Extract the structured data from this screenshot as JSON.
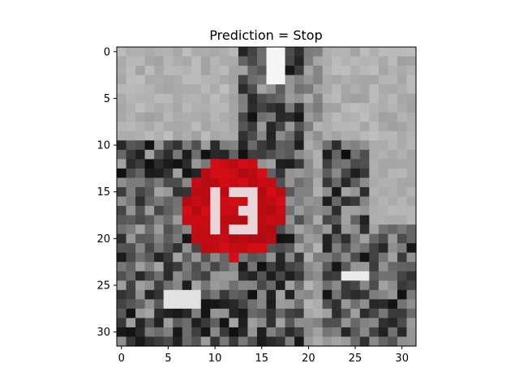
{
  "figure": {
    "title": "Prediction = Stop",
    "grid_size": 32,
    "x_ticks": [
      "0",
      "5",
      "10",
      "15",
      "20",
      "25",
      "30"
    ],
    "y_ticks": [
      "0",
      "5",
      "10",
      "15",
      "20",
      "25",
      "30"
    ],
    "stop_sign_color": "#cc1119",
    "stop_sign_center": [
      12.6,
      17.2
    ],
    "stop_sign_radius": 5.1
  }
}
